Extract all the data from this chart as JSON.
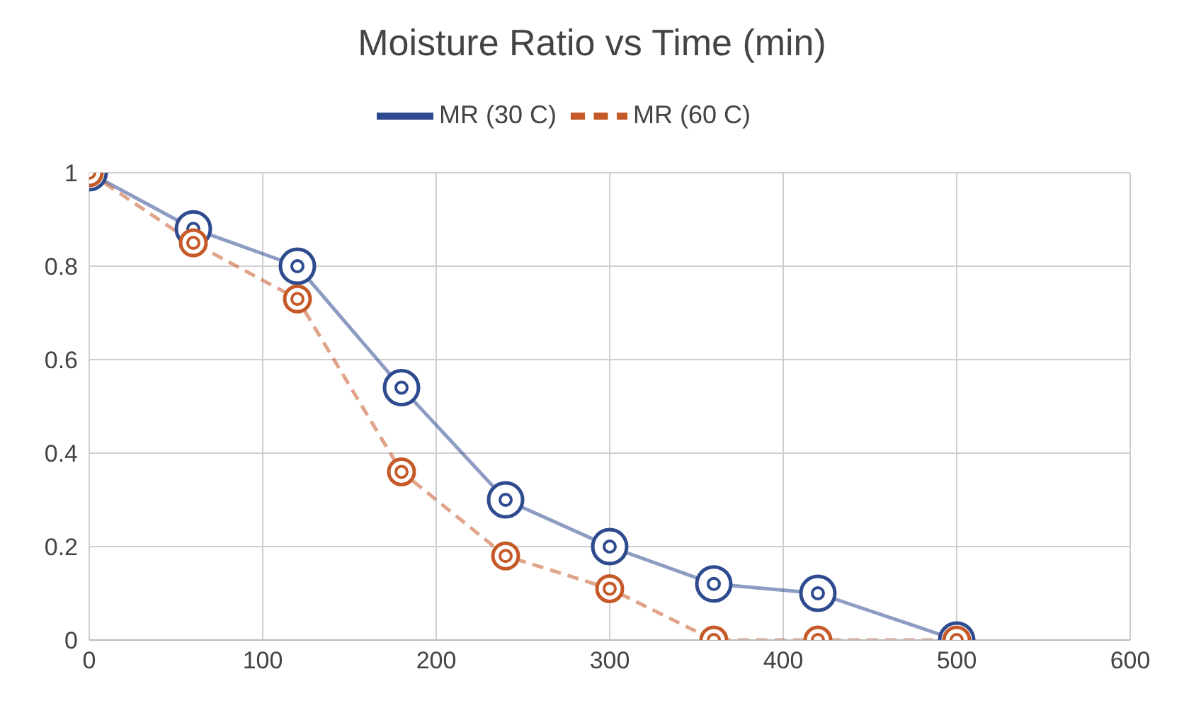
{
  "chart_data": {
    "type": "line",
    "title": "Moisture Ratio vs Time (min)",
    "x": [
      0,
      60,
      120,
      180,
      240,
      300,
      360,
      420,
      500
    ],
    "series": [
      {
        "name": "MR (30 C)",
        "color": "#2f4b8f",
        "values": [
          1,
          0.88,
          0.8,
          0.54,
          0.3,
          0.2,
          0.12,
          0.1,
          0
        ],
        "line_style": "solid"
      },
      {
        "name": "MR (60 C)",
        "color": "#c55a28",
        "values": [
          1,
          0.85,
          0.73,
          0.36,
          0.18,
          0.11,
          0,
          0,
          0
        ],
        "line_style": "dashed"
      }
    ],
    "xlim": [
      0,
      600
    ],
    "xticks": [
      0,
      100,
      200,
      300,
      400,
      500,
      600
    ],
    "ylim": [
      0,
      1
    ],
    "yticks": [
      0,
      0.2,
      0.4,
      0.6,
      0.8,
      1
    ],
    "grid": true,
    "legend": "top",
    "marker": "circle"
  }
}
